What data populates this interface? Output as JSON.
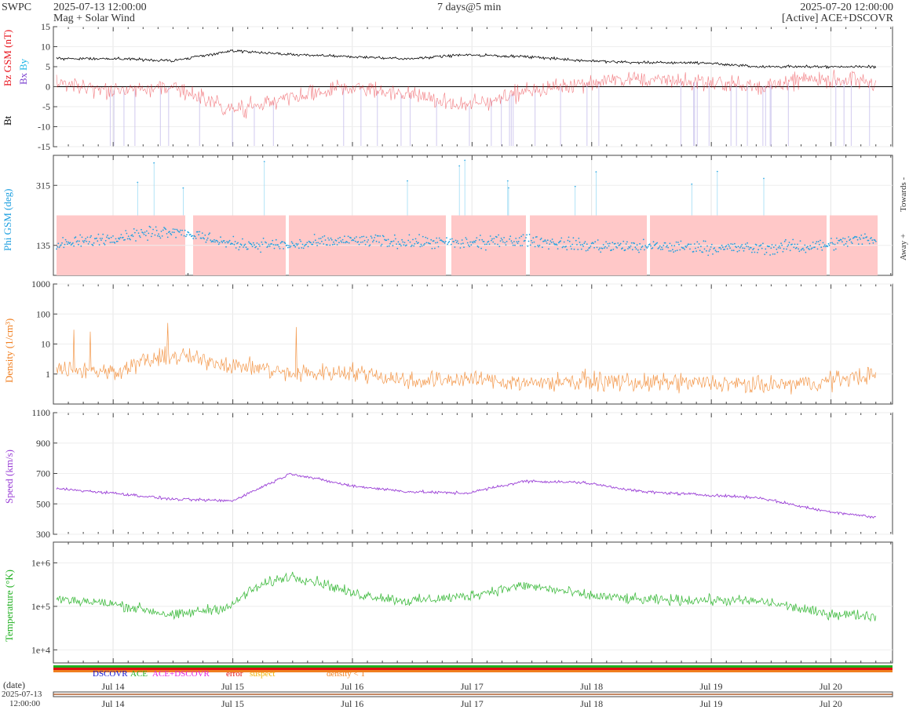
{
  "header": {
    "brand": "SWPC",
    "start": "2025-07-13 12:00:00",
    "subtitle": "Mag + Solar Wind",
    "span": "7 days@5 min",
    "end": "2025-07-20 12:00:00",
    "source": "[Active] ACE+DSCOVR"
  },
  "colors": {
    "bt": "#000000",
    "bz": "#e8121b",
    "bx": "#7a3fcf",
    "by": "#1fb6e6",
    "phi": "#1fa0e0",
    "phi_band": "#ffc8c8",
    "density": "#f07f20",
    "speed": "#9a3fd6",
    "temp": "#22b022",
    "zero": "#000000"
  },
  "panels": {
    "mag": {
      "ylabels": [
        "Bt",
        "Bz GSM (nT)",
        "Bx",
        "By"
      ],
      "ticks": [
        "15",
        "10",
        "5",
        "0",
        "-5",
        "-10",
        "-15"
      ]
    },
    "phi": {
      "ylabel": "Phi GSM (deg)",
      "ticks": [
        "315",
        "135"
      ],
      "right_top": "Towards -",
      "right_bottom": "Away +"
    },
    "density": {
      "ylabel": "Density (1/cm³)",
      "ticks": [
        "1000",
        "100",
        "10",
        "1"
      ]
    },
    "speed": {
      "ylabel": "Speed (km/s)",
      "ticks": [
        "1100",
        "900",
        "700",
        "500",
        "300"
      ]
    },
    "temp": {
      "ylabel": "Temperature (°K)",
      "ticks": [
        "1e+6",
        "1e+5",
        "1e+4"
      ]
    }
  },
  "legend": {
    "dscovr": "DSCOVR",
    "ace": "ACE",
    "both": "ACE+DSCOVR",
    "error": "error",
    "suspect": "suspect",
    "dens": "density < 1",
    "c_dscovr": "#1010d0",
    "c_ace": "#20b020",
    "c_both": "#e020e0",
    "c_error": "#e01010",
    "c_suspect": "#f0b000",
    "c_dens": "#f07f20"
  },
  "xaxis": {
    "days": [
      "Jul 14",
      "Jul 15",
      "Jul 16",
      "Jul 17",
      "Jul 18",
      "Jul 19",
      "Jul 20"
    ],
    "date_label": "(date)",
    "date_value": "2025-07-13",
    "time_value": "12:00:00"
  },
  "chart_data": [
    {
      "type": "line",
      "title": "Mag + Solar Wind",
      "ylabel": "Bz GSM (nT)",
      "ylim": [
        -15,
        15
      ],
      "x": [
        "Jul 13 12:00",
        "Jul 14",
        "Jul 14 12:00",
        "Jul 15",
        "Jul 15 12:00",
        "Jul 16",
        "Jul 16 12:00",
        "Jul 17",
        "Jul 17 12:00",
        "Jul 18",
        "Jul 18 12:00",
        "Jul 19",
        "Jul 19 12:00",
        "Jul 20",
        "Jul 20 12:00"
      ],
      "series": [
        {
          "name": "Bt",
          "values": [
            7,
            7,
            6.5,
            9,
            8,
            7.5,
            7,
            8,
            7.5,
            6.5,
            6,
            6,
            5,
            5,
            5
          ]
        },
        {
          "name": "Bz GSM (nT)",
          "values": [
            1,
            -1,
            0,
            -6,
            -3,
            0,
            -2,
            -5,
            -1,
            1,
            2,
            1,
            0,
            2,
            1
          ]
        }
      ]
    },
    {
      "type": "scatter",
      "ylabel": "Phi GSM (deg)",
      "ylim": [
        45,
        405
      ],
      "x": [
        "Jul 13 12:00",
        "Jul 14",
        "Jul 14 12:00",
        "Jul 15",
        "Jul 15 12:00",
        "Jul 16",
        "Jul 16 12:00",
        "Jul 17",
        "Jul 17 12:00",
        "Jul 18",
        "Jul 18 12:00",
        "Jul 19",
        "Jul 19 12:00",
        "Jul 20",
        "Jul 20 12:00"
      ],
      "series": [
        {
          "name": "Phi",
          "values": [
            135,
            160,
            180,
            140,
            135,
            150,
            145,
            140,
            150,
            135,
            130,
            130,
            125,
            135,
            160
          ]
        }
      ]
    },
    {
      "type": "line",
      "ylabel": "Density (1/cm³)",
      "ylim": [
        0.1,
        1000
      ],
      "x": [
        "Jul 13 12:00",
        "Jul 14",
        "Jul 14 12:00",
        "Jul 15",
        "Jul 15 12:00",
        "Jul 16",
        "Jul 16 12:00",
        "Jul 17",
        "Jul 17 12:00",
        "Jul 18",
        "Jul 18 12:00",
        "Jul 19",
        "Jul 19 12:00",
        "Jul 20",
        "Jul 20 12:00"
      ],
      "series": [
        {
          "name": "Density",
          "values": [
            1.5,
            1.2,
            4,
            2,
            1,
            1.2,
            0.6,
            0.7,
            0.5,
            0.6,
            0.5,
            0.5,
            0.4,
            0.5,
            1
          ]
        }
      ]
    },
    {
      "type": "line",
      "ylabel": "Speed (km/s)",
      "ylim": [
        300,
        1100
      ],
      "x": [
        "Jul 13 12:00",
        "Jul 14",
        "Jul 14 12:00",
        "Jul 15",
        "Jul 15 12:00",
        "Jul 16",
        "Jul 16 12:00",
        "Jul 17",
        "Jul 17 12:00",
        "Jul 18",
        "Jul 18 12:00",
        "Jul 19",
        "Jul 19 12:00",
        "Jul 20",
        "Jul 20 12:00"
      ],
      "series": [
        {
          "name": "Speed",
          "values": [
            600,
            570,
            530,
            520,
            700,
            620,
            580,
            570,
            650,
            640,
            580,
            560,
            540,
            460,
            410
          ]
        }
      ]
    },
    {
      "type": "line",
      "ylabel": "Temperature (°K)",
      "ylim": [
        5000,
        3000000
      ],
      "x": [
        "Jul 13 12:00",
        "Jul 14",
        "Jul 14 12:00",
        "Jul 15",
        "Jul 15 12:00",
        "Jul 16",
        "Jul 16 12:00",
        "Jul 17",
        "Jul 17 12:00",
        "Jul 18",
        "Jul 18 12:00",
        "Jul 19",
        "Jul 19 12:00",
        "Jul 20",
        "Jul 20 12:00"
      ],
      "series": [
        {
          "name": "Temperature",
          "values": [
            150000,
            110000,
            60000,
            100000,
            500000,
            200000,
            130000,
            170000,
            300000,
            180000,
            140000,
            140000,
            130000,
            70000,
            60000
          ]
        }
      ]
    }
  ]
}
